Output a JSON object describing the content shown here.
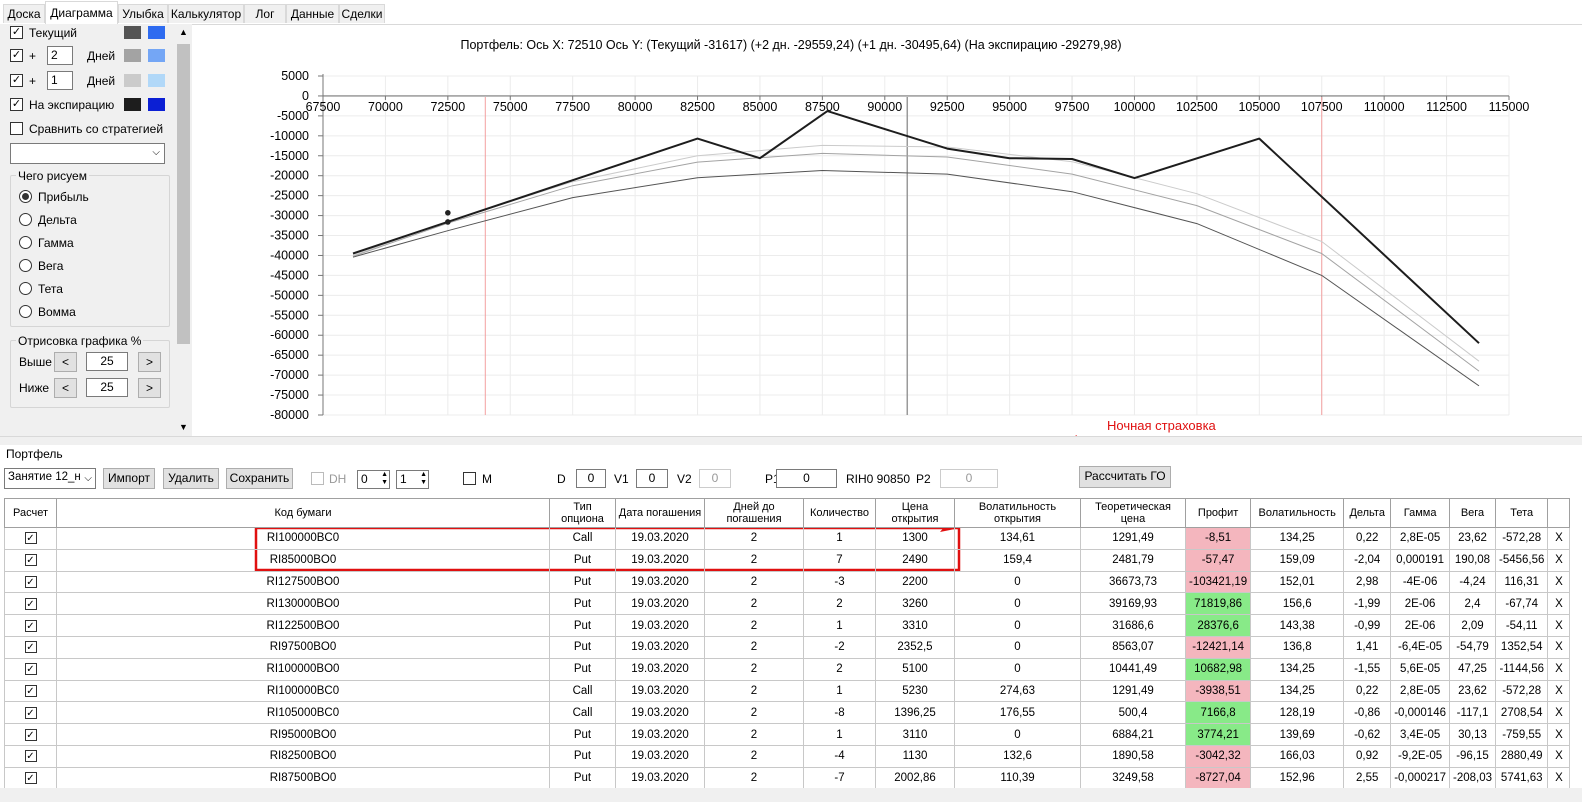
{
  "tabs": [
    "Доска",
    "Диаграмма",
    "Улыбка",
    "Калькулятор",
    "Лог",
    "Данные",
    "Сделки"
  ],
  "active_tab": "Диаграмма",
  "left_panel": {
    "current_label": "Текущий",
    "plus1": "+",
    "days1_value": "2",
    "days_label": "Дней",
    "plus2": "+",
    "days2_value": "1",
    "expiry_label": "На экспирацию",
    "compare_label": "Сравнить со стратегией",
    "strategy_select": "",
    "draw_group_title": "Чего рисуем",
    "draw_options": [
      "Прибыль",
      "Дельта",
      "Гамма",
      "Вега",
      "Тета",
      "Вомма"
    ],
    "render_group_title": "Отрисовка графика %",
    "above_label": "Выше",
    "above_value": "25",
    "below_label": "Ниже",
    "below_value": "25",
    "dec": "<",
    "inc": ">"
  },
  "colors": {
    "current_a": "#545454",
    "current_b": "#2e6bf0",
    "d2_a": "#a3a3a3",
    "d2_b": "#74a6f5",
    "d1_a": "#cbcbcb",
    "d1_b": "#b1d8f8",
    "exp_a": "#1d1d1d",
    "exp_b": "#0b1fd4",
    "annotation": "#e01010"
  },
  "chart_title": "Портфель: Ось X: 72510 Ось Y:  (Текущий -31617)  (+2 дн. -29559,24)  (+1 дн. -30495,64)  (На экспирацию -29279,98)",
  "chart_data": {
    "type": "line",
    "x_ticks": [
      67500,
      70000,
      72500,
      75000,
      77500,
      80000,
      82500,
      85000,
      87500,
      90000,
      92500,
      95000,
      97500,
      100000,
      102500,
      105000,
      107500,
      110000,
      112500,
      115000
    ],
    "y_ticks": [
      5000,
      0,
      -5000,
      -10000,
      -15000,
      -20000,
      -25000,
      -30000,
      -35000,
      -40000,
      -45000,
      -50000,
      -55000,
      -60000,
      -65000,
      -70000,
      -75000,
      -80000
    ],
    "xlim": [
      67500,
      115000
    ],
    "ylim": [
      -80000,
      5000
    ],
    "vertical_markers": {
      "red": [
        74000,
        107500
      ],
      "gray": 90900
    },
    "series": [
      {
        "color": "#1d1d1d",
        "width": 2,
        "points": [
          [
            68700,
            -39500
          ],
          [
            82500,
            -10700
          ],
          [
            85000,
            -15600
          ],
          [
            87700,
            -3800
          ],
          [
            92500,
            -13200
          ],
          [
            95000,
            -15600
          ],
          [
            97500,
            -15800
          ],
          [
            100000,
            -20600
          ],
          [
            105000,
            -10700
          ],
          [
            113800,
            -62000
          ]
        ]
      },
      {
        "color": "#cbcbcb",
        "width": 1,
        "points": [
          [
            68700,
            -40000
          ],
          [
            72500,
            -31500
          ],
          [
            77500,
            -21500
          ],
          [
            82500,
            -15000
          ],
          [
            87500,
            -12400
          ],
          [
            92500,
            -12800
          ],
          [
            97500,
            -16500
          ],
          [
            102500,
            -24500
          ],
          [
            107500,
            -36500
          ],
          [
            113800,
            -66500
          ]
        ]
      },
      {
        "color": "#a3a3a3",
        "width": 1,
        "points": [
          [
            68700,
            -40200
          ],
          [
            72500,
            -31900
          ],
          [
            77500,
            -22500
          ],
          [
            82500,
            -16600
          ],
          [
            87500,
            -14400
          ],
          [
            92500,
            -15300
          ],
          [
            97500,
            -19600
          ],
          [
            102500,
            -27500
          ],
          [
            107500,
            -39500
          ],
          [
            113800,
            -69000
          ]
        ]
      },
      {
        "color": "#545454",
        "width": 1,
        "points": [
          [
            68700,
            -40400
          ],
          [
            72500,
            -33800
          ],
          [
            77500,
            -25500
          ],
          [
            82500,
            -20500
          ],
          [
            87500,
            -18700
          ],
          [
            92500,
            -19600
          ],
          [
            97500,
            -24000
          ],
          [
            102500,
            -32000
          ],
          [
            107500,
            -45000
          ],
          [
            113800,
            -72700
          ]
        ]
      }
    ],
    "dots": [
      [
        72500,
        -29300
      ],
      [
        72500,
        -31600
      ]
    ]
  },
  "annotation_text": "Ночная страховка",
  "portfolio": {
    "title": "Портфель",
    "session": "Занятие 12_н",
    "import_btn": "Импорт",
    "delete_btn": "Удалить",
    "save_btn": "Сохранить",
    "dh_label": "DH",
    "dh_a": "0",
    "dh_b": "1",
    "m_label": "M",
    "d_label": "D",
    "d_value": "0",
    "v1_label": "V1",
    "v1_value": "0",
    "v2_label": "V2",
    "v2_value": "0",
    "p1_label": "P1",
    "p1_value": "0",
    "ticker": "RIH0 90850",
    "p2_label": "P2",
    "p2_value": "0",
    "calc_btn": "Рассчитать ГО"
  },
  "table": {
    "headers": [
      "Расчет",
      "Код бумаги",
      "Тип опциона",
      "Дата погашения",
      "Дней до погашения",
      "Количество",
      "Цена открытия",
      "Волатильность открытия",
      "Теоретическая цена",
      "Профит",
      "Волатильность",
      "Дельта",
      "Гамма",
      "Вега",
      "Тета",
      ""
    ],
    "delete_mark": "X",
    "rows": [
      [
        "RI100000BC0",
        "Call",
        "19.03.2020",
        "2",
        "1",
        "1300",
        "134,61",
        "1291,49",
        "-8,51",
        "134,25",
        "0,22",
        "2,8E-05",
        "23,62",
        "-572,28"
      ],
      [
        "RI85000BO0",
        "Put",
        "19.03.2020",
        "2",
        "7",
        "2490",
        "159,4",
        "2481,79",
        "-57,47",
        "159,09",
        "-2,04",
        "0,000191",
        "190,08",
        "-5456,56"
      ],
      [
        "RI127500BO0",
        "Put",
        "19.03.2020",
        "2",
        "-3",
        "2200",
        "0",
        "36673,73",
        "-103421,19",
        "152,01",
        "2,98",
        "-4E-06",
        "-4,24",
        "116,31"
      ],
      [
        "RI130000BO0",
        "Put",
        "19.03.2020",
        "2",
        "2",
        "3260",
        "0",
        "39169,93",
        "71819,86",
        "156,6",
        "-1,99",
        "2E-06",
        "2,4",
        "-67,74"
      ],
      [
        "RI122500BO0",
        "Put",
        "19.03.2020",
        "2",
        "1",
        "3310",
        "0",
        "31686,6",
        "28376,6",
        "143,38",
        "-0,99",
        "2E-06",
        "2,09",
        "-54,11"
      ],
      [
        "RI97500BO0",
        "Put",
        "19.03.2020",
        "2",
        "-2",
        "2352,5",
        "0",
        "8563,07",
        "-12421,14",
        "136,8",
        "1,41",
        "-6,4E-05",
        "-54,79",
        "1352,54"
      ],
      [
        "RI100000BO0",
        "Put",
        "19.03.2020",
        "2",
        "2",
        "5100",
        "0",
        "10441,49",
        "10682,98",
        "134,25",
        "-1,55",
        "5,6E-05",
        "47,25",
        "-1144,56"
      ],
      [
        "RI100000BC0",
        "Call",
        "19.03.2020",
        "2",
        "1",
        "5230",
        "274,63",
        "1291,49",
        "-3938,51",
        "134,25",
        "0,22",
        "2,8E-05",
        "23,62",
        "-572,28"
      ],
      [
        "RI105000BC0",
        "Call",
        "19.03.2020",
        "2",
        "-8",
        "1396,25",
        "176,55",
        "500,4",
        "7166,8",
        "128,19",
        "-0,86",
        "-0,000146",
        "-117,1",
        "2708,54"
      ],
      [
        "RI95000BO0",
        "Put",
        "19.03.2020",
        "2",
        "1",
        "3110",
        "0",
        "6884,21",
        "3774,21",
        "139,69",
        "-0,62",
        "3,4E-05",
        "30,13",
        "-759,55"
      ],
      [
        "RI82500BO0",
        "Put",
        "19.03.2020",
        "2",
        "-4",
        "1130",
        "132,6",
        "1890,58",
        "-3042,32",
        "166,03",
        "0,92",
        "-9,2E-05",
        "-96,15",
        "2880,49"
      ],
      [
        "RI87500BO0",
        "Put",
        "19.03.2020",
        "2",
        "-7",
        "2002,86",
        "110,39",
        "3249,58",
        "-8727,04",
        "152,96",
        "2,55",
        "-0,000217",
        "-208,03",
        "5741,63"
      ]
    ]
  }
}
